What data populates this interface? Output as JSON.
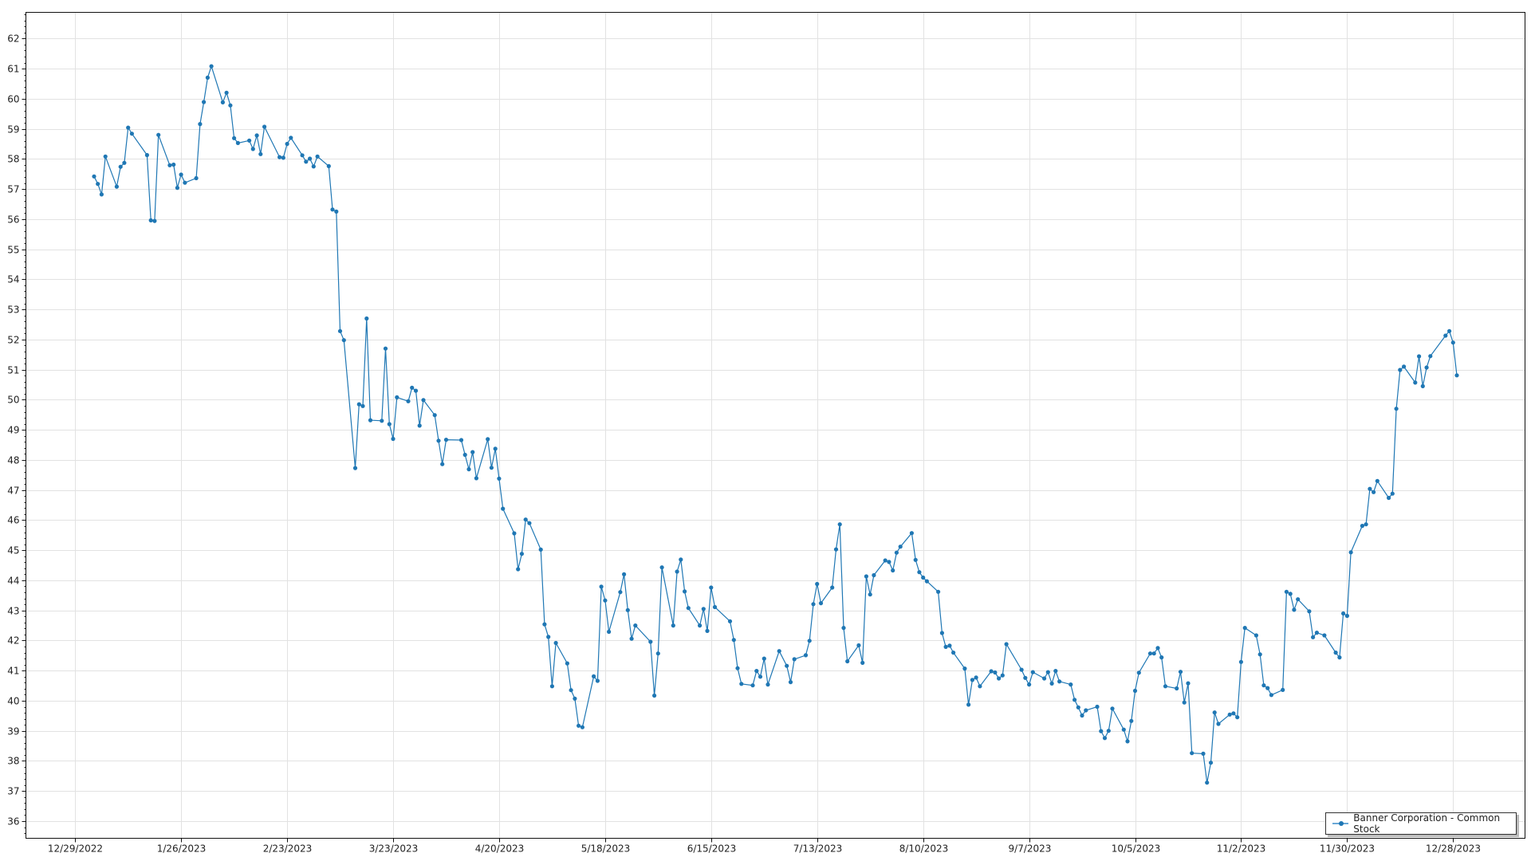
{
  "chart_data": {
    "type": "line",
    "title": "",
    "xlabel": "",
    "ylabel": "",
    "xlim": [
      "2022-12-16",
      "2024-01-16"
    ],
    "ylim": [
      35.43,
      62.87
    ],
    "grid": true,
    "legend_position": "bottom-right",
    "x_ticks": [
      {
        "date": "2022-12-29",
        "label": "12/29/2022"
      },
      {
        "date": "2023-01-26",
        "label": "1/26/2023"
      },
      {
        "date": "2023-02-23",
        "label": "2/23/2023"
      },
      {
        "date": "2023-03-23",
        "label": "3/23/2023"
      },
      {
        "date": "2023-04-20",
        "label": "4/20/2023"
      },
      {
        "date": "2023-05-18",
        "label": "5/18/2023"
      },
      {
        "date": "2023-06-15",
        "label": "6/15/2023"
      },
      {
        "date": "2023-07-13",
        "label": "7/13/2023"
      },
      {
        "date": "2023-08-10",
        "label": "8/10/2023"
      },
      {
        "date": "2023-09-07",
        "label": "9/7/2023"
      },
      {
        "date": "2023-10-05",
        "label": "10/5/2023"
      },
      {
        "date": "2023-11-02",
        "label": "11/2/2023"
      },
      {
        "date": "2023-11-30",
        "label": "11/30/2023"
      },
      {
        "date": "2023-12-28",
        "label": "12/28/2023"
      }
    ],
    "y_ticks": [
      "36",
      "37",
      "38",
      "39",
      "40",
      "41",
      "42",
      "43",
      "44",
      "45",
      "46",
      "47",
      "48",
      "49",
      "50",
      "51",
      "52",
      "53",
      "54",
      "55",
      "56",
      "57",
      "58",
      "59",
      "60",
      "61",
      "62"
    ],
    "series": [
      {
        "name": "Banner Corporation - Common Stock",
        "color": "#1f77b4",
        "points": [
          [
            "2023-01-03",
            57.42
          ],
          [
            "2023-01-04",
            57.17
          ],
          [
            "2023-01-05",
            56.82
          ],
          [
            "2023-01-06",
            58.08
          ],
          [
            "2023-01-09",
            57.08
          ],
          [
            "2023-01-10",
            57.74
          ],
          [
            "2023-01-11",
            57.87
          ],
          [
            "2023-01-12",
            59.04
          ],
          [
            "2023-01-13",
            58.84
          ],
          [
            "2023-01-17",
            58.13
          ],
          [
            "2023-01-18",
            55.96
          ],
          [
            "2023-01-19",
            55.94
          ],
          [
            "2023-01-20",
            58.8
          ],
          [
            "2023-01-23",
            57.79
          ],
          [
            "2023-01-24",
            57.81
          ],
          [
            "2023-01-25",
            57.04
          ],
          [
            "2023-01-26",
            57.48
          ],
          [
            "2023-01-27",
            57.21
          ],
          [
            "2023-01-30",
            57.36
          ],
          [
            "2023-01-31",
            59.16
          ],
          [
            "2023-02-01",
            59.89
          ],
          [
            "2023-02-02",
            60.7
          ],
          [
            "2023-02-03",
            61.08
          ],
          [
            "2023-02-06",
            59.88
          ],
          [
            "2023-02-07",
            60.2
          ],
          [
            "2023-02-08",
            59.78
          ],
          [
            "2023-02-09",
            58.69
          ],
          [
            "2023-02-10",
            58.53
          ],
          [
            "2023-02-13",
            58.61
          ],
          [
            "2023-02-14",
            58.33
          ],
          [
            "2023-02-15",
            58.78
          ],
          [
            "2023-02-16",
            58.16
          ],
          [
            "2023-02-17",
            59.07
          ],
          [
            "2023-02-21",
            58.06
          ],
          [
            "2023-02-22",
            58.04
          ],
          [
            "2023-02-23",
            58.5
          ],
          [
            "2023-02-24",
            58.7
          ],
          [
            "2023-02-27",
            58.12
          ],
          [
            "2023-02-28",
            57.91
          ],
          [
            "2023-03-01",
            58.01
          ],
          [
            "2023-03-02",
            57.75
          ],
          [
            "2023-03-03",
            58.08
          ],
          [
            "2023-03-06",
            57.76
          ],
          [
            "2023-03-07",
            56.32
          ],
          [
            "2023-03-08",
            56.25
          ],
          [
            "2023-03-09",
            52.28
          ],
          [
            "2023-03-10",
            51.98
          ],
          [
            "2023-03-13",
            47.73
          ],
          [
            "2023-03-14",
            49.85
          ],
          [
            "2023-03-15",
            49.79
          ],
          [
            "2023-03-16",
            52.7
          ],
          [
            "2023-03-17",
            49.32
          ],
          [
            "2023-03-20",
            49.3
          ],
          [
            "2023-03-21",
            51.7
          ],
          [
            "2023-03-22",
            49.19
          ],
          [
            "2023-03-23",
            48.7
          ],
          [
            "2023-03-24",
            50.08
          ],
          [
            "2023-03-27",
            49.95
          ],
          [
            "2023-03-28",
            50.4
          ],
          [
            "2023-03-29",
            50.3
          ],
          [
            "2023-03-30",
            49.14
          ],
          [
            "2023-03-31",
            49.99
          ],
          [
            "2023-04-03",
            49.49
          ],
          [
            "2023-04-04",
            48.64
          ],
          [
            "2023-04-05",
            47.86
          ],
          [
            "2023-04-06",
            48.67
          ],
          [
            "2023-04-10",
            48.66
          ],
          [
            "2023-04-11",
            48.17
          ],
          [
            "2023-04-12",
            47.69
          ],
          [
            "2023-04-13",
            48.26
          ],
          [
            "2023-04-14",
            47.39
          ],
          [
            "2023-04-17",
            48.69
          ],
          [
            "2023-04-18",
            47.74
          ],
          [
            "2023-04-19",
            48.37
          ],
          [
            "2023-04-20",
            47.38
          ],
          [
            "2023-04-21",
            46.38
          ],
          [
            "2023-04-24",
            45.56
          ],
          [
            "2023-04-25",
            44.37
          ],
          [
            "2023-04-26",
            44.88
          ],
          [
            "2023-04-27",
            46.02
          ],
          [
            "2023-04-28",
            45.9
          ],
          [
            "2023-05-01",
            45.02
          ],
          [
            "2023-05-02",
            42.54
          ],
          [
            "2023-05-03",
            42.12
          ],
          [
            "2023-05-04",
            40.48
          ],
          [
            "2023-05-05",
            41.92
          ],
          [
            "2023-05-08",
            41.24
          ],
          [
            "2023-05-09",
            40.35
          ],
          [
            "2023-05-10",
            40.07
          ],
          [
            "2023-05-11",
            39.17
          ],
          [
            "2023-05-12",
            39.12
          ],
          [
            "2023-05-15",
            40.81
          ],
          [
            "2023-05-16",
            40.66
          ],
          [
            "2023-05-17",
            43.79
          ],
          [
            "2023-05-18",
            43.33
          ],
          [
            "2023-05-19",
            42.29
          ],
          [
            "2023-05-22",
            43.61
          ],
          [
            "2023-05-23",
            44.2
          ],
          [
            "2023-05-24",
            43.01
          ],
          [
            "2023-05-25",
            42.06
          ],
          [
            "2023-05-26",
            42.5
          ],
          [
            "2023-05-30",
            41.96
          ],
          [
            "2023-05-31",
            40.17
          ],
          [
            "2023-06-01",
            41.57
          ],
          [
            "2023-06-02",
            44.43
          ],
          [
            "2023-06-05",
            42.5
          ],
          [
            "2023-06-06",
            44.29
          ],
          [
            "2023-06-07",
            44.69
          ],
          [
            "2023-06-08",
            43.63
          ],
          [
            "2023-06-09",
            43.08
          ],
          [
            "2023-06-12",
            42.5
          ],
          [
            "2023-06-13",
            43.05
          ],
          [
            "2023-06-14",
            42.32
          ],
          [
            "2023-06-15",
            43.76
          ],
          [
            "2023-06-16",
            43.11
          ],
          [
            "2023-06-20",
            42.64
          ],
          [
            "2023-06-21",
            42.02
          ],
          [
            "2023-06-22",
            41.08
          ],
          [
            "2023-06-23",
            40.56
          ],
          [
            "2023-06-26",
            40.51
          ],
          [
            "2023-06-27",
            40.99
          ],
          [
            "2023-06-28",
            40.8
          ],
          [
            "2023-06-29",
            41.4
          ],
          [
            "2023-06-30",
            40.54
          ],
          [
            "2023-07-03",
            41.65
          ],
          [
            "2023-07-05",
            41.16
          ],
          [
            "2023-07-06",
            40.62
          ],
          [
            "2023-07-07",
            41.38
          ],
          [
            "2023-07-10",
            41.51
          ],
          [
            "2023-07-11",
            41.99
          ],
          [
            "2023-07-12",
            43.21
          ],
          [
            "2023-07-13",
            43.88
          ],
          [
            "2023-07-14",
            43.24
          ],
          [
            "2023-07-17",
            43.76
          ],
          [
            "2023-07-18",
            45.03
          ],
          [
            "2023-07-19",
            45.86
          ],
          [
            "2023-07-20",
            42.42
          ],
          [
            "2023-07-21",
            41.31
          ],
          [
            "2023-07-24",
            41.84
          ],
          [
            "2023-07-25",
            41.26
          ],
          [
            "2023-07-26",
            44.13
          ],
          [
            "2023-07-27",
            43.53
          ],
          [
            "2023-07-28",
            44.17
          ],
          [
            "2023-07-31",
            44.66
          ],
          [
            "2023-08-01",
            44.61
          ],
          [
            "2023-08-02",
            44.33
          ],
          [
            "2023-08-03",
            44.92
          ],
          [
            "2023-08-04",
            45.12
          ],
          [
            "2023-08-07",
            45.57
          ],
          [
            "2023-08-08",
            44.68
          ],
          [
            "2023-08-09",
            44.27
          ],
          [
            "2023-08-10",
            44.09
          ],
          [
            "2023-08-11",
            43.97
          ],
          [
            "2023-08-14",
            43.62
          ],
          [
            "2023-08-15",
            42.25
          ],
          [
            "2023-08-16",
            41.79
          ],
          [
            "2023-08-17",
            41.83
          ],
          [
            "2023-08-18",
            41.6
          ],
          [
            "2023-08-21",
            41.07
          ],
          [
            "2023-08-22",
            39.87
          ],
          [
            "2023-08-23",
            40.69
          ],
          [
            "2023-08-24",
            40.77
          ],
          [
            "2023-08-25",
            40.48
          ],
          [
            "2023-08-28",
            40.98
          ],
          [
            "2023-08-29",
            40.94
          ],
          [
            "2023-08-30",
            40.74
          ],
          [
            "2023-08-31",
            40.84
          ],
          [
            "2023-09-01",
            41.88
          ],
          [
            "2023-09-05",
            41.03
          ],
          [
            "2023-09-06",
            40.76
          ],
          [
            "2023-09-07",
            40.54
          ],
          [
            "2023-09-08",
            40.95
          ],
          [
            "2023-09-11",
            40.74
          ],
          [
            "2023-09-12",
            40.95
          ],
          [
            "2023-09-13",
            40.57
          ],
          [
            "2023-09-14",
            40.99
          ],
          [
            "2023-09-15",
            40.64
          ],
          [
            "2023-09-18",
            40.54
          ],
          [
            "2023-09-19",
            40.03
          ],
          [
            "2023-09-20",
            39.78
          ],
          [
            "2023-09-21",
            39.51
          ],
          [
            "2023-09-22",
            39.68
          ],
          [
            "2023-09-25",
            39.8
          ],
          [
            "2023-09-26",
            38.99
          ],
          [
            "2023-09-27",
            38.76
          ],
          [
            "2023-09-28",
            39.0
          ],
          [
            "2023-09-29",
            39.74
          ],
          [
            "2023-10-02",
            39.04
          ],
          [
            "2023-10-03",
            38.65
          ],
          [
            "2023-10-04",
            39.33
          ],
          [
            "2023-10-05",
            40.33
          ],
          [
            "2023-10-06",
            40.93
          ],
          [
            "2023-10-09",
            41.57
          ],
          [
            "2023-10-10",
            41.57
          ],
          [
            "2023-10-11",
            41.75
          ],
          [
            "2023-10-12",
            41.44
          ],
          [
            "2023-10-13",
            40.48
          ],
          [
            "2023-10-16",
            40.41
          ],
          [
            "2023-10-17",
            40.96
          ],
          [
            "2023-10-18",
            39.94
          ],
          [
            "2023-10-19",
            40.58
          ],
          [
            "2023-10-20",
            38.26
          ],
          [
            "2023-10-23",
            38.24
          ],
          [
            "2023-10-24",
            37.28
          ],
          [
            "2023-10-25",
            37.94
          ],
          [
            "2023-10-26",
            39.61
          ],
          [
            "2023-10-27",
            39.23
          ],
          [
            "2023-10-30",
            39.54
          ],
          [
            "2023-10-31",
            39.58
          ],
          [
            "2023-11-01",
            39.45
          ],
          [
            "2023-11-02",
            41.29
          ],
          [
            "2023-11-03",
            42.42
          ],
          [
            "2023-11-06",
            42.17
          ],
          [
            "2023-11-07",
            41.54
          ],
          [
            "2023-11-08",
            40.51
          ],
          [
            "2023-11-09",
            40.42
          ],
          [
            "2023-11-10",
            40.19
          ],
          [
            "2023-11-13",
            40.36
          ],
          [
            "2023-11-14",
            43.62
          ],
          [
            "2023-11-15",
            43.55
          ],
          [
            "2023-11-16",
            43.02
          ],
          [
            "2023-11-17",
            43.37
          ],
          [
            "2023-11-20",
            42.97
          ],
          [
            "2023-11-21",
            42.11
          ],
          [
            "2023-11-22",
            42.26
          ],
          [
            "2023-11-24",
            42.17
          ],
          [
            "2023-11-27",
            41.6
          ],
          [
            "2023-11-28",
            41.44
          ],
          [
            "2023-11-29",
            42.9
          ],
          [
            "2023-11-30",
            42.82
          ],
          [
            "2023-12-01",
            44.93
          ],
          [
            "2023-12-04",
            45.81
          ],
          [
            "2023-12-05",
            45.86
          ],
          [
            "2023-12-06",
            47.04
          ],
          [
            "2023-12-07",
            46.93
          ],
          [
            "2023-12-08",
            47.3
          ],
          [
            "2023-12-11",
            46.74
          ],
          [
            "2023-12-12",
            46.88
          ],
          [
            "2023-12-13",
            49.7
          ],
          [
            "2023-12-14",
            50.99
          ],
          [
            "2023-12-15",
            51.1
          ],
          [
            "2023-12-18",
            50.57
          ],
          [
            "2023-12-19",
            51.44
          ],
          [
            "2023-12-20",
            50.45
          ],
          [
            "2023-12-21",
            51.07
          ],
          [
            "2023-12-22",
            51.45
          ],
          [
            "2023-12-26",
            52.13
          ],
          [
            "2023-12-27",
            52.28
          ],
          [
            "2023-12-28",
            51.9
          ],
          [
            "2023-12-29",
            50.81
          ]
        ]
      }
    ]
  }
}
